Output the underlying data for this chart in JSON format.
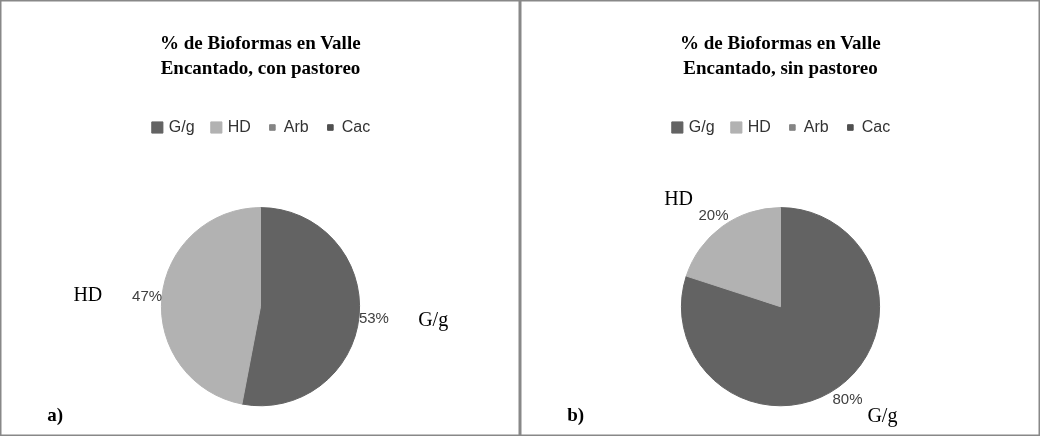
{
  "chart_data": [
    {
      "type": "pie",
      "title": "% de Bioformas en Valle Encantado, con pastoreo",
      "categories": [
        "G/g",
        "HD",
        "Arb",
        "Cac"
      ],
      "values": [
        53,
        47,
        0,
        0
      ],
      "colors": [
        "#636363",
        "#b2b2b2",
        "#858585",
        "#4f4f4f"
      ],
      "value_labels": [
        "53%",
        "47%",
        null,
        null
      ],
      "legend": "top",
      "annotations": [
        "a)"
      ]
    },
    {
      "type": "pie",
      "title": "% de Bioformas en Valle Encantado, sin pastoreo",
      "categories": [
        "G/g",
        "HD",
        "Arb",
        "Cac"
      ],
      "values": [
        80,
        20,
        0,
        0
      ],
      "colors": [
        "#636363",
        "#b2b2b2",
        "#858585",
        "#4f4f4f"
      ],
      "value_labels": [
        "80%",
        "20%",
        null,
        null
      ],
      "legend": "top",
      "annotations": [
        "b)"
      ]
    }
  ]
}
